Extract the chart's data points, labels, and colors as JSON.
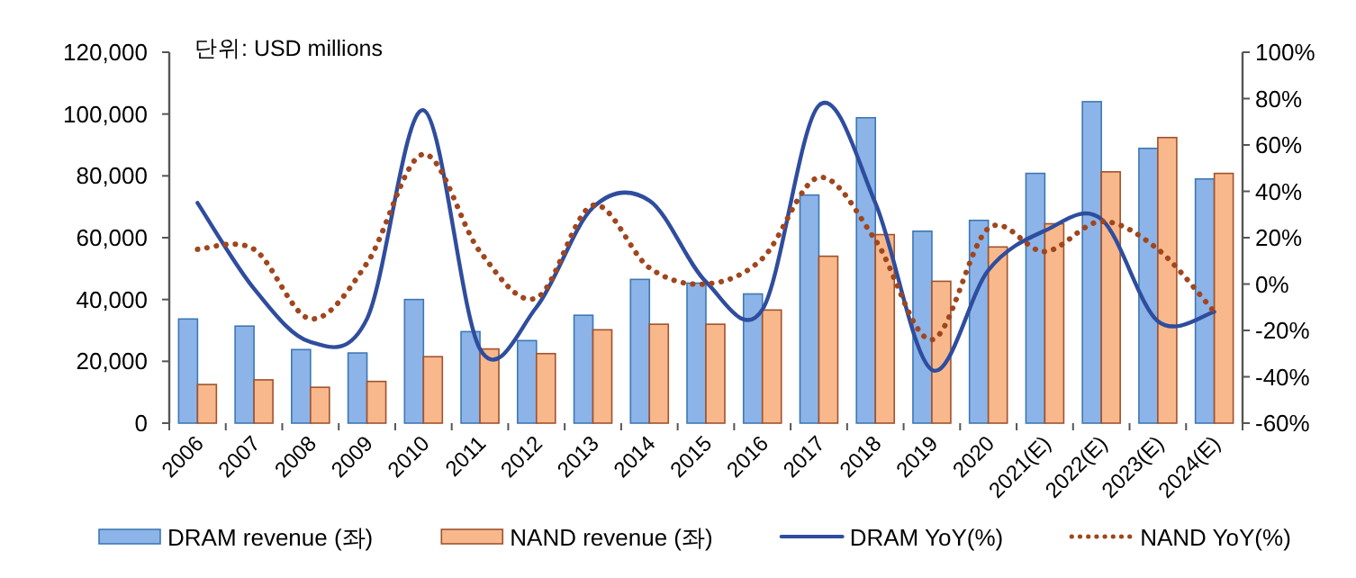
{
  "chart_data": {
    "type": "bar",
    "annotations": [
      "단위: USD millions"
    ],
    "categories": [
      "2006",
      "2007",
      "2008",
      "2009",
      "2010",
      "2011",
      "2012",
      "2013",
      "2014",
      "2015",
      "2016",
      "2017",
      "2018",
      "2019",
      "2020",
      "2021(E)",
      "2022(E)",
      "2023(E)",
      "2024(E)"
    ],
    "series": [
      {
        "name": "DRAM revenue (좌)",
        "color": "#8db4e8",
        "values": [
          33700,
          31400,
          23800,
          22700,
          40000,
          29600,
          26700,
          34900,
          46500,
          45300,
          41800,
          73800,
          98800,
          62100,
          65600,
          80800,
          104000,
          88900,
          79000
        ]
      },
      {
        "name": "NAND revenue (좌)",
        "color": "#f8b88b",
        "values": [
          12500,
          14000,
          11600,
          13500,
          21500,
          24000,
          22500,
          30200,
          32000,
          32000,
          36600,
          54000,
          61000,
          45900,
          57000,
          64500,
          81300,
          92400,
          80800
        ]
      },
      {
        "name": "DRAM YoY(%)",
        "type": "line",
        "axis": "y2",
        "color": "#2f4d9e",
        "line_style": "solid",
        "values": [
          35,
          -2,
          -25,
          -15,
          75,
          -28,
          -10,
          33,
          36,
          1,
          -11,
          77,
          35,
          -37,
          6,
          23,
          28,
          -16,
          -12
        ]
      },
      {
        "name": "NAND YoY(%)",
        "type": "line",
        "axis": "y2",
        "color": "#a0461e",
        "line_style": "dotted",
        "values": [
          15,
          15,
          -15,
          9,
          56,
          14,
          -6,
          34,
          7,
          0,
          11,
          46,
          19,
          -24,
          24,
          14,
          27,
          15,
          -12
        ]
      }
    ],
    "ylim": [
      0,
      120000
    ],
    "yticks": [
      {
        "value": 0,
        "label": "0"
      },
      {
        "value": 20000,
        "label": "20,000"
      },
      {
        "value": 40000,
        "label": "40,000"
      },
      {
        "value": 60000,
        "label": "60,000"
      },
      {
        "value": 80000,
        "label": "80,000"
      },
      {
        "value": 100000,
        "label": "100,000"
      },
      {
        "value": 120000,
        "label": "120,000"
      }
    ],
    "y2lim": [
      -60,
      100
    ],
    "y2ticks": [
      {
        "value": -60,
        "label": "-60%"
      },
      {
        "value": -40,
        "label": "-40%"
      },
      {
        "value": -20,
        "label": "-20%"
      },
      {
        "value": 0,
        "label": "0%"
      },
      {
        "value": 20,
        "label": "20%"
      },
      {
        "value": 40,
        "label": "40%"
      },
      {
        "value": 60,
        "label": "60%"
      },
      {
        "value": 80,
        "label": "80%"
      },
      {
        "value": 100,
        "label": "100%"
      }
    ],
    "grid": false,
    "legend": "bottom"
  }
}
